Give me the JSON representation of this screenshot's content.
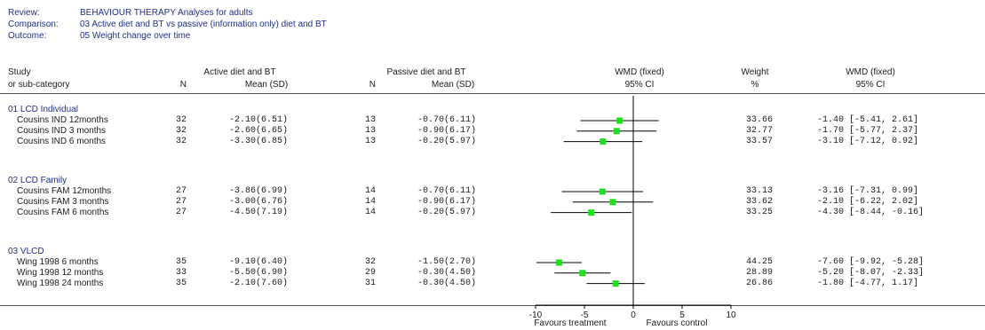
{
  "meta": {
    "review_label": "Review:",
    "review_value": "BEHAVIOUR THERAPY Analyses for adults",
    "comparison_label": "Comparison:",
    "comparison_value": "03 Active diet and BT vs passive (information only) diet and BT",
    "outcome_label": "Outcome:",
    "outcome_value": "05 Weight change over time"
  },
  "columns": {
    "study_l1": "Study",
    "study_l2": "or sub-category",
    "active_l1": "Active diet and BT",
    "n": "N",
    "mean_sd": "Mean (SD)",
    "passive_l1": "Passive diet and BT",
    "wmd_l1": "WMD (fixed)",
    "ci": "95% CI",
    "weight_l1": "Weight",
    "weight_l2": "%",
    "wmd2_l1": "WMD (fixed)"
  },
  "groups": [
    {
      "title": "01 LCD Individual",
      "rows": [
        {
          "study": "Cousins IND 12months",
          "n1": "32",
          "ms1": "-2.10(6.51)",
          "n2": "13",
          "ms2": "-0.70(6.11)",
          "weight": "33.66",
          "ci_text": "-1.40 [-5.41, 2.61]"
        },
        {
          "study": "Cousins IND 3 months",
          "n1": "32",
          "ms1": "-2.60(6.65)",
          "n2": "13",
          "ms2": "-0.90(6.17)",
          "weight": "32.77",
          "ci_text": "-1.70 [-5.77, 2.37]"
        },
        {
          "study": "Cousins IND 6 months",
          "n1": "32",
          "ms1": "-3.30(6.85)",
          "n2": "13",
          "ms2": "-0.20(5.97)",
          "weight": "33.57",
          "ci_text": "-3.10 [-7.12, 0.92]"
        }
      ]
    },
    {
      "title": "02 LCD Family",
      "rows": [
        {
          "study": "Cousins FAM 12months",
          "n1": "27",
          "ms1": "-3.86(6.99)",
          "n2": "14",
          "ms2": "-0.70(6.11)",
          "weight": "33.13",
          "ci_text": "-3.16 [-7.31, 0.99]"
        },
        {
          "study": "Cousins FAM 3 months",
          "n1": "27",
          "ms1": "-3.00(6.76)",
          "n2": "14",
          "ms2": "-0.90(6.17)",
          "weight": "33.62",
          "ci_text": "-2.10 [-6.22, 2.02]"
        },
        {
          "study": "Cousins FAM 6 months",
          "n1": "27",
          "ms1": "-4.50(7.19)",
          "n2": "14",
          "ms2": "-0.20(5.97)",
          "weight": "33.25",
          "ci_text": "-4.30 [-8.44, -0.16]"
        }
      ]
    },
    {
      "title": "03 VLCD",
      "rows": [
        {
          "study": "Wing 1998 6 months",
          "n1": "35",
          "ms1": "-9.10(6.40)",
          "n2": "32",
          "ms2": "-1.50(2.70)",
          "weight": "44.25",
          "ci_text": "-7.60 [-9.92, -5.28]"
        },
        {
          "study": "Wing 1998 12 months",
          "n1": "33",
          "ms1": "-5.50(6.90)",
          "n2": "29",
          "ms2": "-0.30(4.50)",
          "weight": "28.89",
          "ci_text": "-5.20 [-8.07, -2.33]"
        },
        {
          "study": "Wing 1998 24 months",
          "n1": "35",
          "ms1": "-2.10(7.60)",
          "n2": "31",
          "ms2": "-0.30(4.50)",
          "weight": "26.86",
          "ci_text": "-1.80 [-4.77, 1.17]"
        }
      ]
    }
  ],
  "footer": {
    "left": "Favours treatment",
    "right": "Favours control"
  },
  "chart_data": {
    "type": "scatter",
    "xlim": [
      -10,
      10
    ],
    "xticks": [
      -10,
      -5,
      0,
      5,
      10
    ],
    "tick_labels": [
      "-10",
      "-5",
      "0",
      "5",
      "10"
    ],
    "marker_color": "#22dd22",
    "points": [
      {
        "study": "Cousins IND 12months",
        "est": -1.4,
        "lo": -5.41,
        "hi": 2.61
      },
      {
        "study": "Cousins IND 3 months",
        "est": -1.7,
        "lo": -5.77,
        "hi": 2.37
      },
      {
        "study": "Cousins IND 6 months",
        "est": -3.1,
        "lo": -7.12,
        "hi": 0.92
      },
      {
        "study": "Cousins FAM 12months",
        "est": -3.16,
        "lo": -7.31,
        "hi": 0.99
      },
      {
        "study": "Cousins FAM 3 months",
        "est": -2.1,
        "lo": -6.22,
        "hi": 2.02
      },
      {
        "study": "Cousins FAM 6 months",
        "est": -4.3,
        "lo": -8.44,
        "hi": -0.16
      },
      {
        "study": "Wing 1998 6 months",
        "est": -7.6,
        "lo": -9.92,
        "hi": -5.28
      },
      {
        "study": "Wing 1998 12 months",
        "est": -5.2,
        "lo": -8.07,
        "hi": -2.33
      },
      {
        "study": "Wing 1998 24 months",
        "est": -1.8,
        "lo": -4.77,
        "hi": 1.17
      }
    ]
  }
}
